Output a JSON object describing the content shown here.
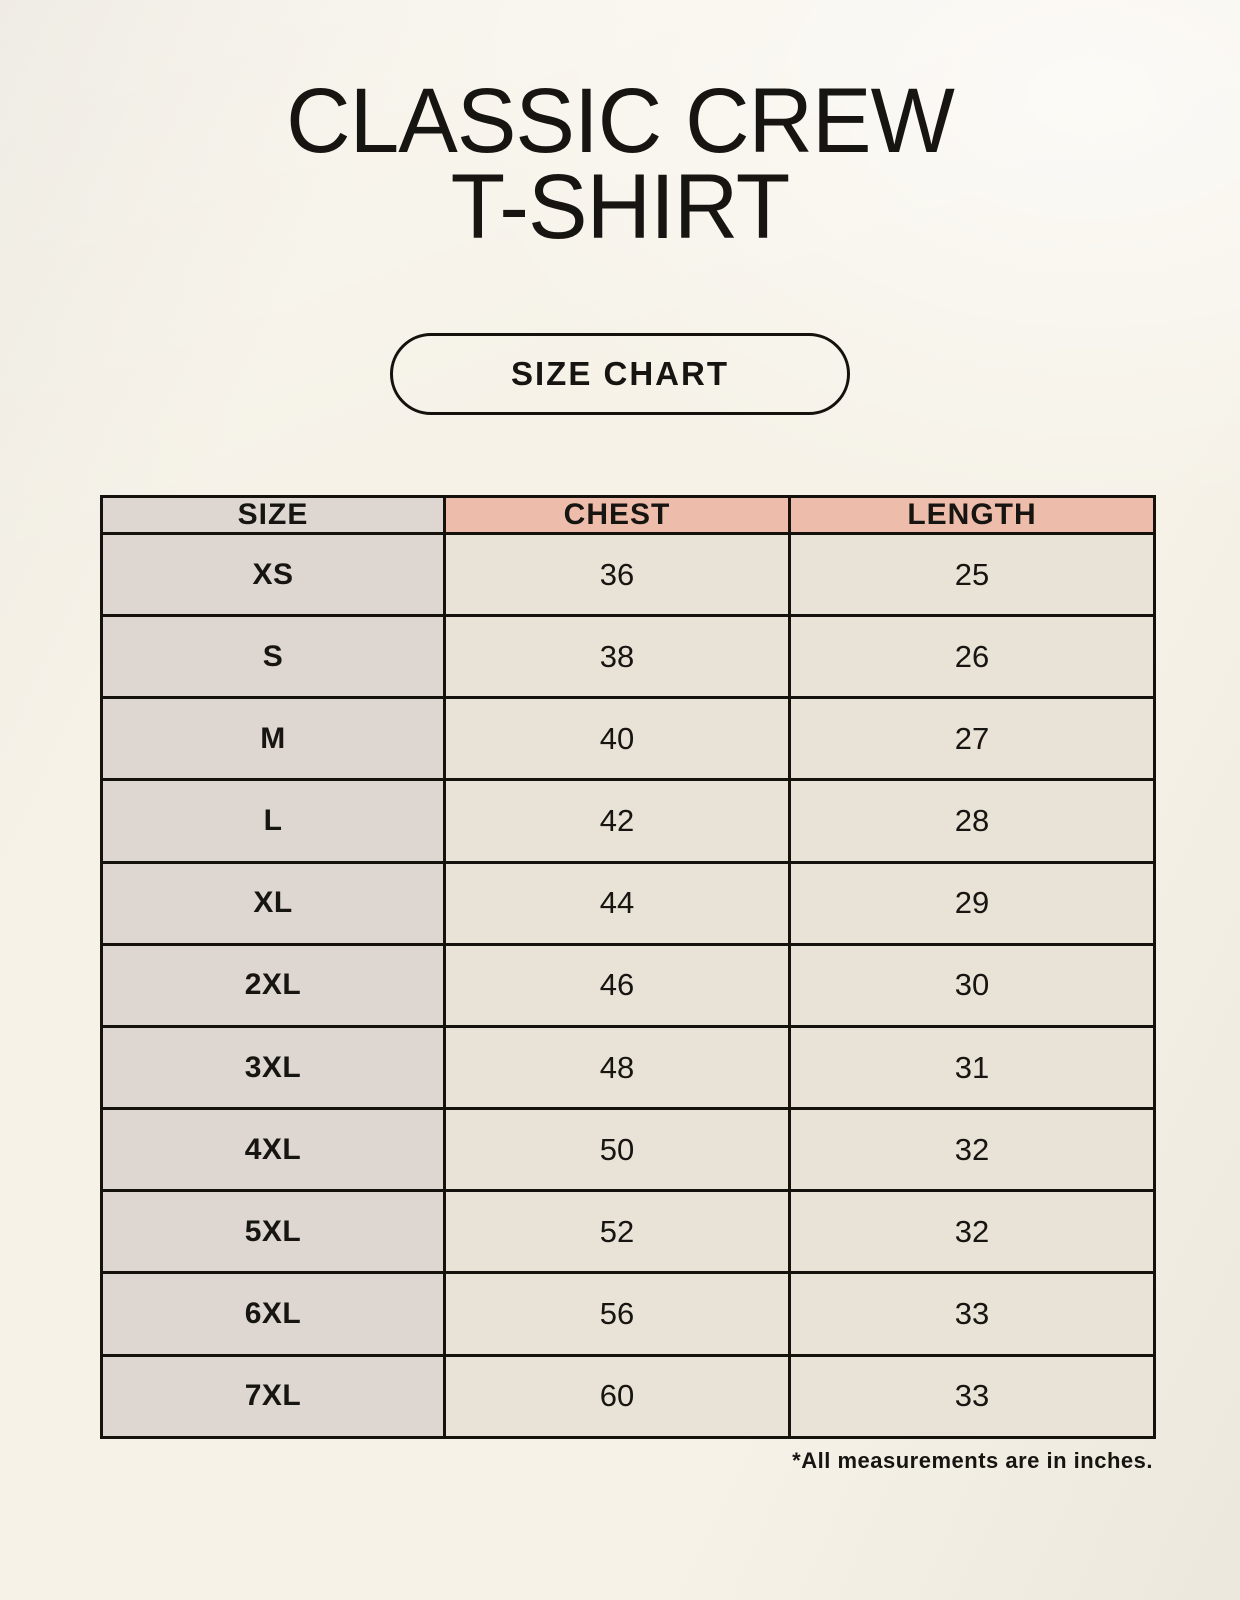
{
  "title": {
    "line1": "CLASSIC CREW",
    "line2": "T-SHIRT"
  },
  "size_chart_button": {
    "label": "SIZE CHART"
  },
  "table": {
    "headers": [
      "SIZE",
      "CHEST",
      "LENGTH"
    ],
    "rows": [
      {
        "size": "XS",
        "chest": "36",
        "length": "25"
      },
      {
        "size": "S",
        "chest": "38",
        "length": "26"
      },
      {
        "size": "M",
        "chest": "40",
        "length": "27"
      },
      {
        "size": "L",
        "chest": "42",
        "length": "28"
      },
      {
        "size": "XL",
        "chest": "44",
        "length": "29"
      },
      {
        "size": "2XL",
        "chest": "46",
        "length": "30"
      },
      {
        "size": "3XL",
        "chest": "48",
        "length": "31"
      },
      {
        "size": "4XL",
        "chest": "50",
        "length": "32"
      },
      {
        "size": "5XL",
        "chest": "52",
        "length": "32"
      },
      {
        "size": "6XL",
        "chest": "56",
        "length": "33"
      },
      {
        "size": "7XL",
        "chest": "60",
        "length": "33"
      }
    ],
    "units_note": "*All measurements are in inches."
  },
  "colors": {
    "bg": "#f6f2e8",
    "ink": "#171511",
    "border": "#15120e",
    "salmon": "#eebcab",
    "gray_cell": "#ded6d0",
    "cream_cell": "#e9e2d6"
  }
}
